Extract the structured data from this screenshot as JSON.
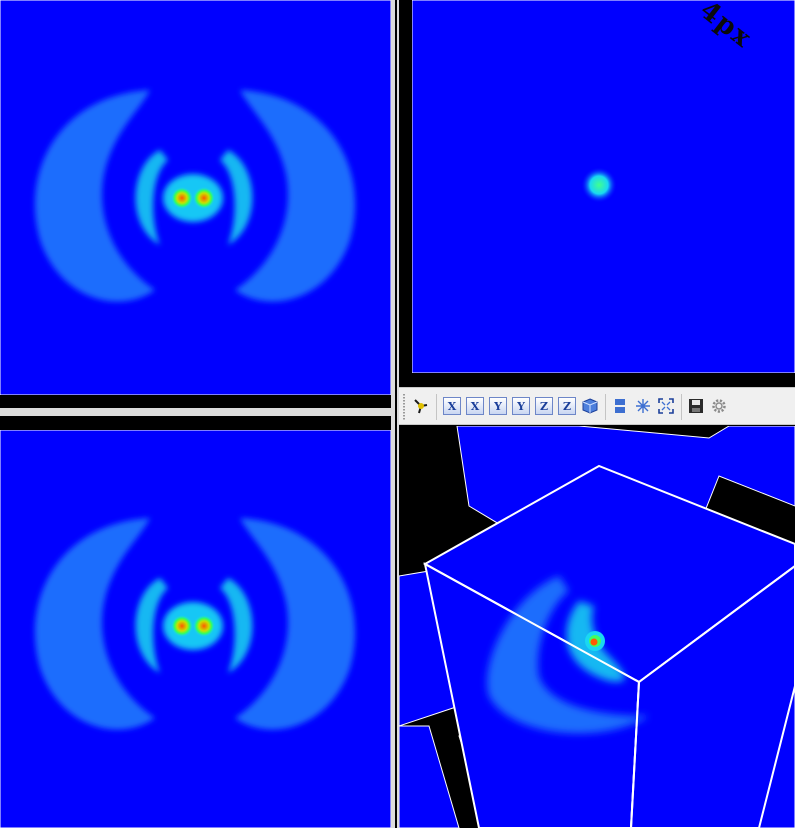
{
  "views": {
    "top_left": {
      "name": "slice-view-xy"
    },
    "top_right": {
      "name": "slice-view-yz",
      "annotation": "4px"
    },
    "bottom_left": {
      "name": "slice-view-xz"
    },
    "bottom_right": {
      "name": "3d-view"
    }
  },
  "colors": {
    "field_background": "#0000ff",
    "outer_lobe": "#1f6dfd",
    "inner_lobe": "#19d8f2",
    "core": "#ff6a00",
    "core_ring": "#44ff33",
    "separator": "#dcdcdc",
    "toolbar_bg": "#f0f0f0"
  },
  "toolbar": {
    "buttons": [
      {
        "icon": "orientation-axes-icon",
        "label": ""
      },
      {
        "icon": "view-x-positive-icon",
        "label": "X"
      },
      {
        "icon": "view-x-negative-icon",
        "label": "X"
      },
      {
        "icon": "view-y-positive-icon",
        "label": "Y"
      },
      {
        "icon": "view-y-negative-icon",
        "label": "Y"
      },
      {
        "icon": "view-z-positive-icon",
        "label": "Z"
      },
      {
        "icon": "view-z-negative-icon",
        "label": "Z"
      },
      {
        "icon": "isometric-view-icon",
        "label": ""
      },
      {
        "icon": "split-layout-icon",
        "label": ""
      },
      {
        "icon": "center-rotation-icon",
        "label": ""
      },
      {
        "icon": "reset-camera-icon",
        "label": ""
      },
      {
        "icon": "save-screenshot-icon",
        "label": ""
      },
      {
        "icon": "settings-gear-icon",
        "label": ""
      }
    ]
  }
}
